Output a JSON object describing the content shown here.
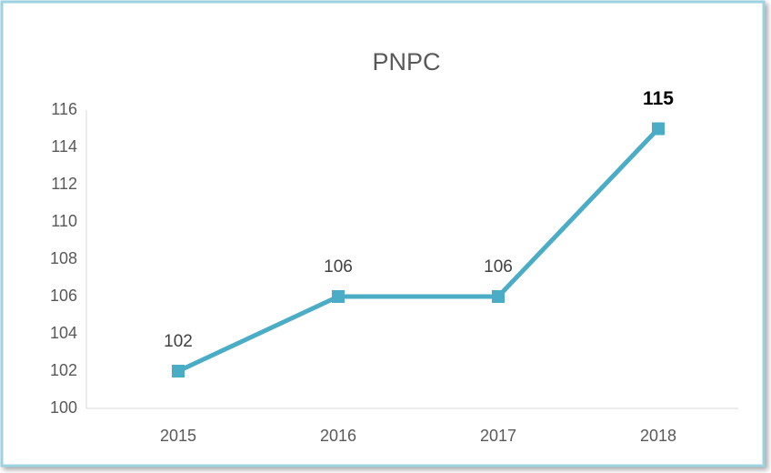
{
  "chart_data": {
    "type": "line",
    "title": "PNPC",
    "categories": [
      "2015",
      "2016",
      "2017",
      "2018"
    ],
    "series": [
      {
        "name": "PNPC",
        "color": "#4bacc6",
        "values": [
          102,
          106,
          106,
          115
        ]
      }
    ],
    "ylim": [
      100,
      116
    ],
    "yticks": [
      100,
      102,
      104,
      106,
      108,
      110,
      112,
      114,
      116
    ],
    "grid": false
  }
}
